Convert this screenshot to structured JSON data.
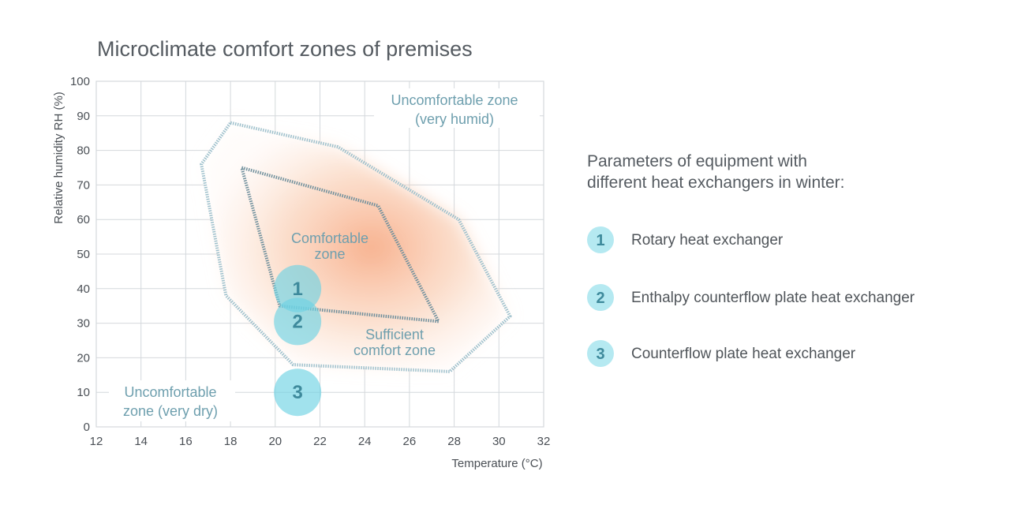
{
  "chart_data": {
    "type": "scatter",
    "title": "Microclimate comfort zones of premises",
    "xlabel": "Temperature (°C)",
    "ylabel": "Relative humidity RH (%)",
    "xlim": [
      12,
      32
    ],
    "ylim": [
      0,
      100
    ],
    "x_ticks": [
      "12",
      "14",
      "16",
      "18",
      "20",
      "22",
      "24",
      "26",
      "28",
      "30",
      "32"
    ],
    "y_ticks": [
      "0",
      "10",
      "20",
      "30",
      "40",
      "50",
      "60",
      "70",
      "80",
      "90",
      "100"
    ],
    "grid": true,
    "zones": [
      {
        "label": [
          "Sufficient",
          "comfort zone"
        ],
        "polygon": [
          [
            18,
            88
          ],
          [
            22.8,
            81
          ],
          [
            28.2,
            60
          ],
          [
            30.5,
            32
          ],
          [
            27.8,
            16
          ],
          [
            20.8,
            18
          ],
          [
            17.8,
            38
          ],
          [
            16.7,
            76
          ]
        ]
      },
      {
        "label": [
          "Comfortable",
          "zone"
        ],
        "polygon": [
          [
            18.5,
            75
          ],
          [
            24.6,
            64
          ],
          [
            27.3,
            30.5
          ],
          [
            20.2,
            35
          ]
        ]
      }
    ],
    "region_labels": [
      [
        "Uncomfortable zone",
        "(very humid)"
      ],
      [
        "Uncomfortable",
        "zone (very dry)"
      ]
    ],
    "points": [
      {
        "label": "1",
        "x": 21,
        "y": 40
      },
      {
        "label": "2",
        "x": 21,
        "y": 30.5
      },
      {
        "label": "3",
        "x": 21,
        "y": 10
      }
    ]
  },
  "legend": {
    "title": [
      "Parameters of equipment with",
      "different heat exchangers in winter:"
    ],
    "items": [
      {
        "num": "1",
        "label": "Rotary heat exchanger"
      },
      {
        "num": "2",
        "label": "Enthalpy counterflow plate heat exchanger"
      },
      {
        "num": "3",
        "label": "Counterflow plate heat exchanger"
      }
    ]
  },
  "colors": {
    "grid": "#d4d8dc",
    "zone_outline": "#9ec0cc",
    "comfort_outline": "#6f8f9c",
    "warm_fill": "#f6a37a",
    "marker_fill": "#6fd3e3",
    "legend_badge": "#b5e9f1"
  }
}
